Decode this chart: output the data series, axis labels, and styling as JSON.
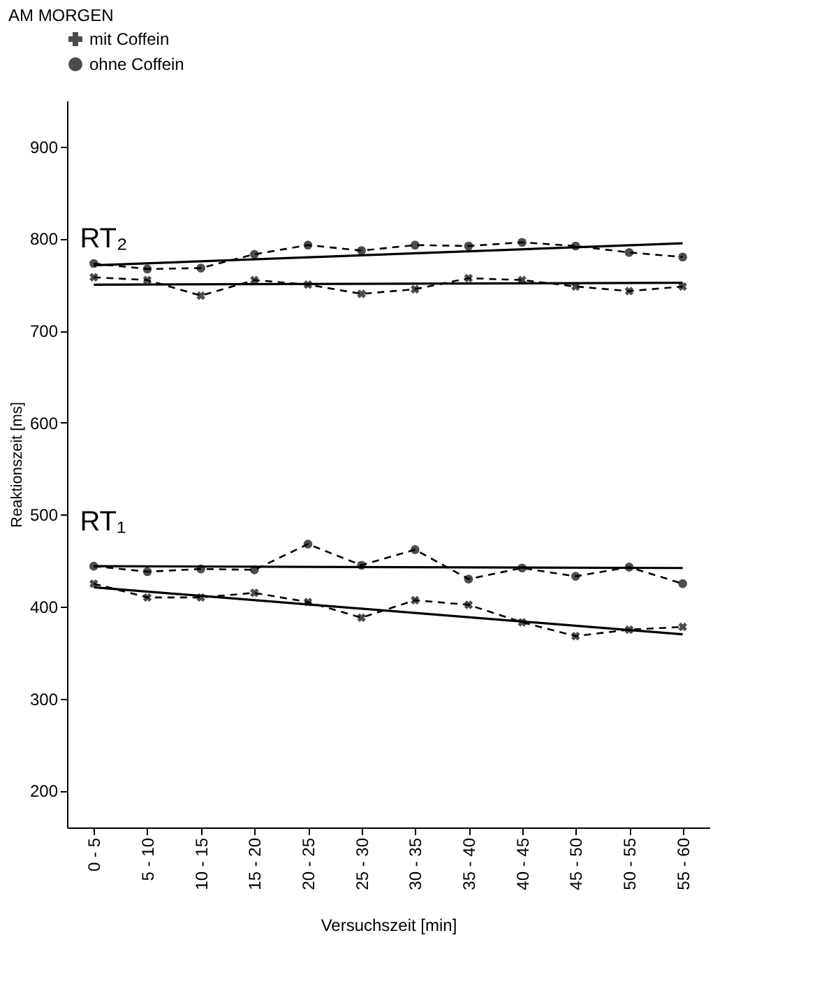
{
  "chart_data": {
    "type": "line",
    "title": "AM MORGEN",
    "xlabel": "Versuchszeit [min]",
    "ylabel": "Reaktionszeit [ms]",
    "categories": [
      "0 - 5",
      "5 - 10",
      "10 - 15",
      "15 - 20",
      "20 - 25",
      "25 - 30",
      "30 - 35",
      "35 - 40",
      "40 - 45",
      "45 - 50",
      "50 - 55",
      "55 - 60"
    ],
    "series": [
      {
        "name": "mit Coffein",
        "color": "#000000",
        "marker": "cross",
        "line_style": "dashed",
        "values": [
          758,
          755,
          738,
          755,
          750,
          740,
          745,
          757,
          755,
          748,
          743,
          748
        ]
      },
      {
        "name": "ohne Coffein",
        "color": "#000000",
        "marker": "circle",
        "line_style": "dashed",
        "values": [
          773,
          767,
          768,
          783,
          793,
          787,
          793,
          792,
          796,
          792,
          785,
          780
        ]
      },
      {
        "color": "#000000",
        "marker": "cross",
        "line_style": "dashed",
        "values": [
          425,
          410,
          410,
          415,
          405,
          388,
          407,
          402,
          383,
          368,
          375,
          378
        ]
      },
      {
        "color": "#000000",
        "marker": "circle",
        "line_style": "dashed",
        "values": [
          444,
          438,
          441,
          440,
          468,
          445,
          462,
          430,
          442,
          433,
          443,
          425
        ]
      },
      {
        "color": "#000000",
        "marker": "none",
        "line_style": "solid",
        "x": [
          "0 - 5",
          "55 - 60"
        ],
        "values": [
          750,
          752
        ]
      },
      {
        "color": "#000000",
        "marker": "none",
        "line_style": "solid",
        "x": [
          "0 - 5",
          "55 - 60"
        ],
        "values": [
          771,
          795
        ]
      },
      {
        "color": "#000000",
        "marker": "none",
        "line_style": "solid",
        "x": [
          "0 - 5",
          "55 - 60"
        ],
        "values": [
          421,
          370
        ]
      },
      {
        "color": "#000000",
        "marker": "none",
        "line_style": "solid",
        "x": [
          "0 - 5",
          "55 - 60"
        ],
        "values": [
          444,
          442
        ]
      }
    ],
    "annotations": [
      "RT₂",
      "RT₁"
    ],
    "ylim": [
      160,
      950
    ],
    "yticks": [
      200,
      300,
      400,
      500,
      600,
      700,
      800,
      900
    ],
    "grid": false,
    "legend": "top"
  }
}
